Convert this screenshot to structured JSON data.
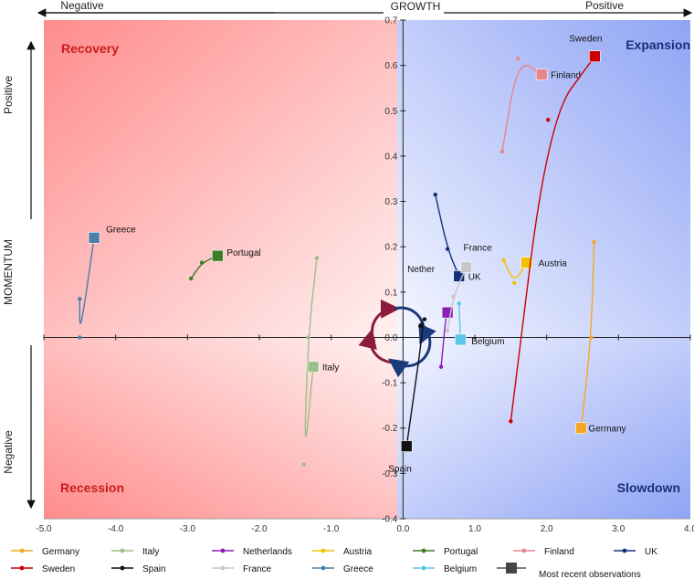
{
  "header": {
    "x_title": "GROWTH",
    "x_negative": "Negative",
    "x_positive": "Positive",
    "y_title": "MOMENTUM",
    "y_positive": "Positive",
    "y_negative": "Negative"
  },
  "quadrants": {
    "top_left": "Recovery",
    "top_right": "Expansion",
    "bottom_left": "Recession",
    "bottom_right": "Slowdown"
  },
  "legend": {
    "most_recent": "Most recent observations"
  },
  "chart_data": {
    "type": "scatter",
    "xlim": [
      -5.0,
      4.0
    ],
    "ylim": [
      -0.4,
      0.7
    ],
    "x_ticks": [
      "-5.0",
      "-4.0",
      "-3.0",
      "-2.0",
      "-1.0",
      "0.0",
      "1.0",
      "2.0",
      "3.0",
      "4.0"
    ],
    "y_ticks": [
      "0.7",
      "0.6",
      "0.5",
      "0.4",
      "0.3",
      "0.2",
      "0.1",
      "0.0",
      "-0.1",
      "-0.2",
      "-0.3",
      "-0.4"
    ],
    "series": [
      {
        "name": "Germany",
        "color": "#f5a623",
        "label": "Germany",
        "points": [
          [
            2.66,
            0.21
          ],
          [
            2.62,
            0.0
          ],
          [
            2.48,
            -0.2
          ]
        ]
      },
      {
        "name": "Italy",
        "color": "#9dbf8a",
        "label": "Italy",
        "points": [
          [
            -1.2,
            0.175
          ],
          [
            -1.32,
            0.0
          ],
          [
            -1.38,
            -0.28
          ],
          [
            -1.25,
            -0.065
          ]
        ]
      },
      {
        "name": "Netherlands",
        "color": "#8b1fb5",
        "label": "Nether",
        "points": [
          [
            0.53,
            -0.065
          ],
          [
            0.6,
            0.05
          ],
          [
            0.62,
            0.055
          ]
        ]
      },
      {
        "name": "Austria",
        "color": "#f2c200",
        "label": "Austria",
        "points": [
          [
            1.4,
            0.17
          ],
          [
            1.55,
            0.12
          ],
          [
            1.72,
            0.165
          ]
        ]
      },
      {
        "name": "Portugal",
        "color": "#3a7d2a",
        "label": "Portugal",
        "points": [
          [
            -2.95,
            0.13
          ],
          [
            -2.8,
            0.165
          ],
          [
            -2.58,
            0.18
          ]
        ]
      },
      {
        "name": "Finland",
        "color": "#e8868a",
        "label": "Finland",
        "points": [
          [
            1.38,
            0.41
          ],
          [
            1.6,
            0.615
          ],
          [
            1.93,
            0.58
          ]
        ]
      },
      {
        "name": "UK",
        "color": "#14307a",
        "label": "UK",
        "points": [
          [
            0.45,
            0.315
          ],
          [
            0.62,
            0.195
          ],
          [
            0.78,
            0.135
          ]
        ]
      },
      {
        "name": "Sweden",
        "color": "#cc0000",
        "label": "Sweden",
        "points": [
          [
            1.5,
            -0.185
          ],
          [
            2.02,
            0.48
          ],
          [
            2.67,
            0.62
          ]
        ]
      },
      {
        "name": "Spain",
        "color": "#111111",
        "label": "Spain",
        "points": [
          [
            0.24,
            0.025
          ],
          [
            0.3,
            0.04
          ],
          [
            0.05,
            -0.24
          ]
        ]
      },
      {
        "name": "France",
        "color": "#c8c8c8",
        "label": "France",
        "points": [
          [
            0.62,
            0.015
          ],
          [
            0.7,
            0.09
          ],
          [
            0.88,
            0.155
          ]
        ]
      },
      {
        "name": "Greece",
        "color": "#4a7fa8",
        "label": "Greece",
        "points": [
          [
            -4.5,
            0.085
          ],
          [
            -4.5,
            0.0
          ],
          [
            -4.3,
            0.22
          ]
        ]
      },
      {
        "name": "Belgium",
        "color": "#5bc6e8",
        "label": "Belgium",
        "points": [
          [
            0.78,
            0.075
          ],
          [
            0.8,
            -0.005
          ]
        ]
      }
    ]
  }
}
